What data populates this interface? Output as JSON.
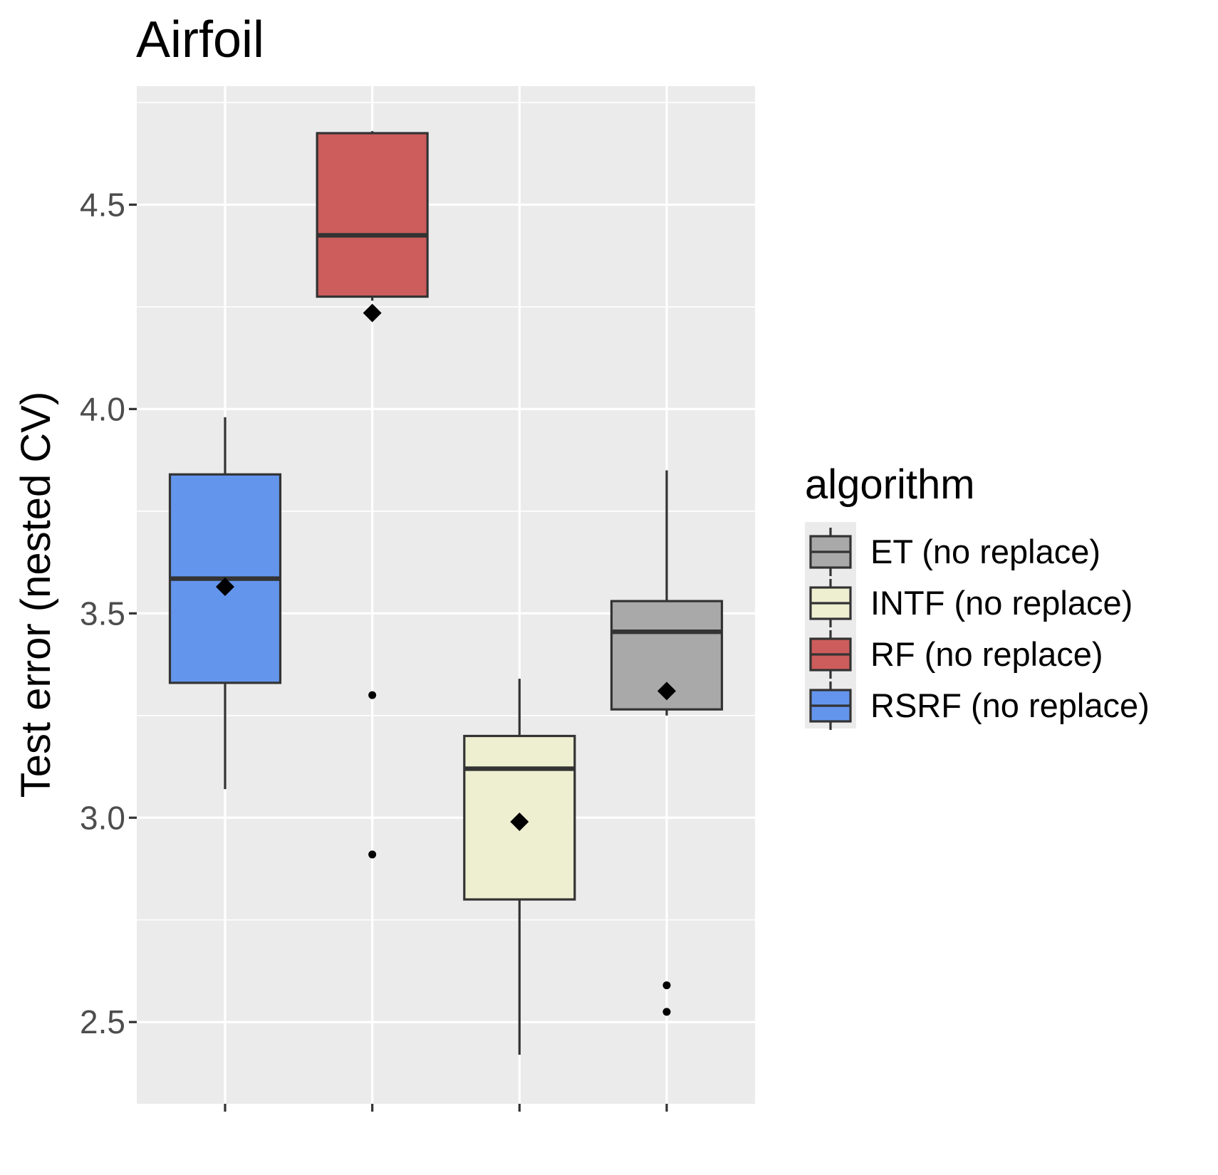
{
  "chart_data": {
    "type": "boxplot",
    "title": "Airfoil",
    "xlabel": "",
    "ylabel": "Test error (nested CV)",
    "ylim": [
      2.3,
      4.79
    ],
    "yticks": [
      2.5,
      3.0,
      3.5,
      4.0,
      4.5
    ],
    "ytick_labels": [
      "2.5",
      "3.0",
      "3.5",
      "4.0",
      "4.5"
    ],
    "grid": true,
    "legend": {
      "title": "algorithm",
      "placement": "right",
      "entries": [
        {
          "label": "ET (no replace)",
          "color": "#a9a9a9"
        },
        {
          "label": "INTF (no replace)",
          "color": "#eeeed1"
        },
        {
          "label": "RF (no replace)",
          "color": "#cd5c5c"
        },
        {
          "label": "RSRF (no replace)",
          "color": "#6495ed"
        }
      ]
    },
    "boxes": [
      {
        "series": "RSRF (no replace)",
        "color": "#6495ed",
        "whisker_low": 3.07,
        "q1": 3.33,
        "median": 3.585,
        "q3": 3.84,
        "whisker_high": 3.98,
        "mean": 3.565,
        "outliers": []
      },
      {
        "series": "RF (no replace)",
        "color": "#cd5c5c",
        "whisker_low": 4.265,
        "q1": 4.275,
        "median": 4.425,
        "q3": 4.675,
        "whisker_high": 4.68,
        "mean": 4.235,
        "outliers": [
          3.3,
          2.91
        ]
      },
      {
        "series": "INTF (no replace)",
        "color": "#eeeed1",
        "whisker_low": 2.42,
        "q1": 2.8,
        "median": 3.12,
        "q3": 3.2,
        "whisker_high": 3.34,
        "mean": 2.99,
        "outliers": []
      },
      {
        "series": "ET (no replace)",
        "color": "#a9a9a9",
        "whisker_low": 3.25,
        "q1": 3.265,
        "median": 3.455,
        "q3": 3.53,
        "whisker_high": 3.85,
        "mean": 3.31,
        "outliers": [
          2.59,
          2.525
        ]
      }
    ]
  }
}
